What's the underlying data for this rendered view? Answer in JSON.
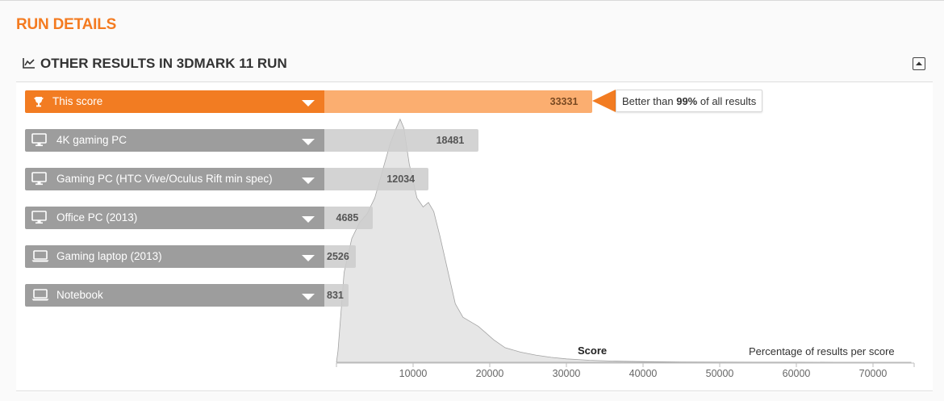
{
  "page": {
    "title": "RUN DETAILS"
  },
  "section": {
    "title": "OTHER RESULTS IN 3DMARK 11 RUN",
    "icon": "line-chart-icon",
    "collapse_icon": "collapse-icon"
  },
  "rows": [
    {
      "label": "This score",
      "value": "33331",
      "score": 33331,
      "icon": "trophy-icon",
      "active": true
    },
    {
      "label": "4K gaming PC",
      "value": "18481",
      "score": 18481,
      "icon": "desktop-icon",
      "active": false
    },
    {
      "label": "Gaming PC (HTC Vive/Oculus Rift min spec)",
      "value": "12034",
      "score": 12034,
      "icon": "desktop-icon",
      "active": false
    },
    {
      "label": "Office PC (2013)",
      "value": "4685",
      "score": 4685,
      "icon": "desktop-icon",
      "active": false
    },
    {
      "label": "Gaming laptop (2013)",
      "value": "2526",
      "score": 2526,
      "icon": "laptop-icon",
      "active": false
    },
    {
      "label": "Notebook",
      "value": "831",
      "score": 831,
      "icon": "laptop-icon",
      "active": false
    }
  ],
  "callout": {
    "prefix": "Better than ",
    "percent": "99%",
    "suffix": " of all results"
  },
  "chart_data": {
    "type": "area",
    "xlabel": "Score",
    "ylabel": "Percentage of results per score",
    "xlim": [
      0,
      75000
    ],
    "x_ticks": [
      10000,
      20000,
      30000,
      40000,
      50000,
      60000,
      70000
    ],
    "x_tick_labels": [
      "10000",
      "20000",
      "30000",
      "40000",
      "50000",
      "60000",
      "70000"
    ],
    "series": [
      {
        "x": [
          0,
          200,
          1000,
          2000,
          3000,
          4000,
          5000,
          6000,
          7000,
          7800,
          8300,
          8800,
          9500,
          10500,
          11300,
          12000,
          12700,
          13500,
          14500,
          15500,
          16500,
          17500,
          18500,
          19500,
          20500,
          22000,
          24000,
          26000,
          28000,
          30000,
          33000,
          36000,
          40000,
          45000,
          50000,
          55000,
          60000,
          65000,
          70000,
          75000
        ],
        "y": [
          0,
          5,
          40,
          55,
          62,
          66,
          73,
          85,
          97,
          104,
          108,
          104,
          88,
          73,
          69,
          71,
          67,
          56,
          41,
          26,
          20,
          18,
          16,
          13,
          10,
          6.5,
          4.5,
          3.2,
          2.2,
          1.5,
          0.9,
          0.55,
          0.3,
          0.15,
          0.08,
          0.04,
          0.02,
          0.01,
          0,
          0
        ]
      }
    ],
    "colors": {
      "area": "#e6e6e6",
      "outline": "#a3a3a3",
      "accent": "#f47b20",
      "active_bar": "#fbae70",
      "ref_bar": "#cdcdcd",
      "ref_label": "#9d9d9d"
    }
  }
}
